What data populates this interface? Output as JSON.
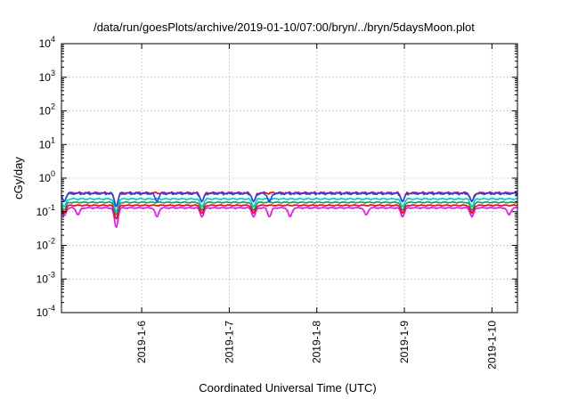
{
  "chart_data": {
    "type": "line",
    "title": "/data/run/goesPlots/archive/2019-01-10/07:00/bryn/../bryn/5daysMoon.plot",
    "xlabel": "Coordinated Universal Time (UTC)",
    "ylabel": "cGy/day",
    "yscale": "log",
    "ylim": [
      0.0001,
      10000
    ],
    "xlim": [
      "2019-01-05T02:00",
      "2019-01-10T07:00"
    ],
    "grid": true,
    "legend": "none",
    "y_ticks": [
      {
        "base": "10",
        "exp": "-4",
        "value": 0.0001
      },
      {
        "base": "10",
        "exp": "-3",
        "value": 0.001
      },
      {
        "base": "10",
        "exp": "-2",
        "value": 0.01
      },
      {
        "base": "10",
        "exp": "-1",
        "value": 0.1
      },
      {
        "base": "10",
        "exp": "0",
        "value": 1
      },
      {
        "base": "10",
        "exp": "1",
        "value": 10
      },
      {
        "base": "10",
        "exp": "2",
        "value": 100
      },
      {
        "base": "10",
        "exp": "3",
        "value": 1000
      },
      {
        "base": "10",
        "exp": "4",
        "value": 10000
      }
    ],
    "x_ticks": [
      {
        "label": "2019-1-6",
        "value": "2019-01-06T00:00"
      },
      {
        "label": "2019-1-7",
        "value": "2019-01-07T00:00"
      },
      {
        "label": "2019-1-8",
        "value": "2019-01-08T00:00"
      },
      {
        "label": "2019-1-9",
        "value": "2019-01-09T00:00"
      },
      {
        "label": "2019-1-10",
        "value": "2019-01-10T00:00"
      }
    ],
    "series": [
      {
        "color": "#ff00ff",
        "base": 0.13,
        "noise": 0.05,
        "dips": [
          {
            "t": "2019-01-05T02:45",
            "v": 0.075
          },
          {
            "t": "2019-01-05T06:30",
            "v": 0.08
          },
          {
            "t": "2019-01-05T17:00",
            "v": 0.033
          },
          {
            "t": "2019-01-06T04:10",
            "v": 0.07
          },
          {
            "t": "2019-01-06T16:30",
            "v": 0.07
          },
          {
            "t": "2019-01-07T06:40",
            "v": 0.07
          },
          {
            "t": "2019-01-07T11:00",
            "v": 0.07
          },
          {
            "t": "2019-01-07T16:40",
            "v": 0.07
          },
          {
            "t": "2019-01-08T13:30",
            "v": 0.08
          },
          {
            "t": "2019-01-08T23:30",
            "v": 0.07
          },
          {
            "t": "2019-01-09T18:30",
            "v": 0.07
          },
          {
            "t": "2019-01-10T04:40",
            "v": 0.08
          }
        ]
      },
      {
        "color": "#ff0000",
        "base": 0.155,
        "noise": 0.05,
        "dips": [
          {
            "t": "2019-01-05T02:45",
            "v": 0.09
          },
          {
            "t": "2019-01-05T17:00",
            "v": 0.06
          },
          {
            "t": "2019-01-06T16:30",
            "v": 0.09
          },
          {
            "t": "2019-01-07T06:40",
            "v": 0.09
          },
          {
            "t": "2019-01-08T23:30",
            "v": 0.09
          },
          {
            "t": "2019-01-09T18:30",
            "v": 0.09
          }
        ]
      },
      {
        "color": "#00a060",
        "base": 0.19,
        "noise": 0.05,
        "dips": [
          {
            "t": "2019-01-05T02:45",
            "v": 0.11
          },
          {
            "t": "2019-01-05T17:00",
            "v": 0.08
          },
          {
            "t": "2019-01-06T16:30",
            "v": 0.11
          },
          {
            "t": "2019-01-07T06:40",
            "v": 0.11
          },
          {
            "t": "2019-01-08T23:30",
            "v": 0.11
          },
          {
            "t": "2019-01-09T18:30",
            "v": 0.11
          }
        ]
      },
      {
        "color": "#00c8c8",
        "base": 0.24,
        "noise": 0.06,
        "dips": [
          {
            "t": "2019-01-05T02:45",
            "v": 0.14
          },
          {
            "t": "2019-01-05T17:00",
            "v": 0.1
          },
          {
            "t": "2019-01-06T16:30",
            "v": 0.14
          },
          {
            "t": "2019-01-07T06:40",
            "v": 0.14
          },
          {
            "t": "2019-01-08T23:30",
            "v": 0.14
          },
          {
            "t": "2019-01-09T18:30",
            "v": 0.14
          }
        ]
      },
      {
        "color": "#ff0000",
        "base": 0.36,
        "noise": 0.09,
        "dips": [
          {
            "t": "2019-01-05T02:45",
            "v": 0.2
          },
          {
            "t": "2019-01-05T17:00",
            "v": 0.14
          },
          {
            "t": "2019-01-06T16:30",
            "v": 0.2
          },
          {
            "t": "2019-01-07T06:40",
            "v": 0.2
          },
          {
            "t": "2019-01-08T23:30",
            "v": 0.2
          },
          {
            "t": "2019-01-09T18:30",
            "v": 0.2
          }
        ]
      },
      {
        "color": "#2040ff",
        "base": 0.35,
        "noise": 0.09,
        "dips": [
          {
            "t": "2019-01-05T02:45",
            "v": 0.2
          },
          {
            "t": "2019-01-05T17:00",
            "v": 0.14
          },
          {
            "t": "2019-01-06T04:10",
            "v": 0.2
          },
          {
            "t": "2019-01-06T16:30",
            "v": 0.2
          },
          {
            "t": "2019-01-07T06:40",
            "v": 0.2
          },
          {
            "t": "2019-01-07T11:00",
            "v": 0.2
          },
          {
            "t": "2019-01-08T23:30",
            "v": 0.2
          },
          {
            "t": "2019-01-09T18:30",
            "v": 0.2
          }
        ]
      }
    ]
  }
}
